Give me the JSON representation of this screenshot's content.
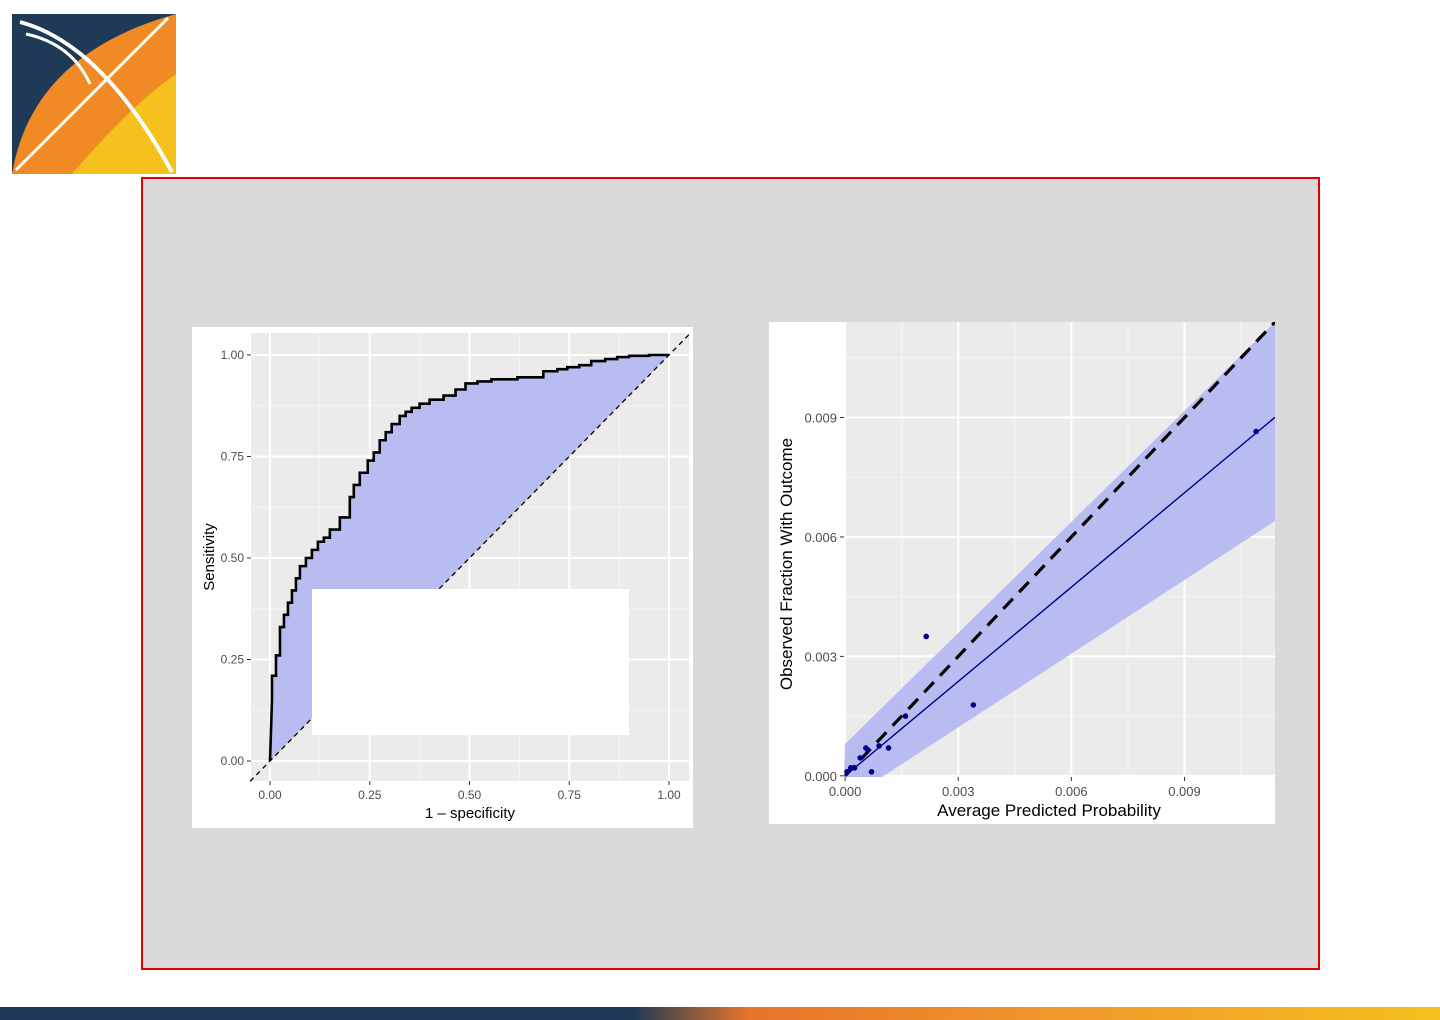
{
  "colors": {
    "frame_border": "#e00000",
    "panel_background": "#d9d9d9",
    "plot_background": "#ebebeb",
    "ribbon_fill": "#b9bcf1",
    "roc_curve": "#000000",
    "calibration_points": "#00008b",
    "calibration_fit_line": "#00008b",
    "logo_navy": "#1f3a56",
    "logo_orange": "#f08a24",
    "logo_yellow": "#f5c11c"
  },
  "logo": {
    "icon": "ohdsi-x-logo"
  },
  "chart_data": [
    {
      "type": "line",
      "xlabel": "1 – specificity",
      "ylabel": "Sensitivity",
      "xlim": [
        0,
        1
      ],
      "ylim": [
        0,
        1
      ],
      "x_tick_labels": [
        "0.00",
        "0.25",
        "0.50",
        "0.75",
        "1.00"
      ],
      "y_tick_labels": [
        "0.00",
        "0.25",
        "0.50",
        "0.75",
        "1.00"
      ],
      "grid": true,
      "diagonal_reference": "dashed",
      "shaded_area": "between curve and diagonal",
      "series": [
        {
          "x": [
            0,
            0.005,
            0.005,
            0.015,
            0.015,
            0.025,
            0.025,
            0.035,
            0.035,
            0.045,
            0.045,
            0.055,
            0.055,
            0.065,
            0.065,
            0.075,
            0.075,
            0.09,
            0.09,
            0.105,
            0.105,
            0.12,
            0.12,
            0.135,
            0.135,
            0.15,
            0.15,
            0.175,
            0.175,
            0.2,
            0.2,
            0.21,
            0.21,
            0.225,
            0.225,
            0.245,
            0.245,
            0.26,
            0.26,
            0.275,
            0.275,
            0.29,
            0.29,
            0.305,
            0.305,
            0.325,
            0.325,
            0.34,
            0.34,
            0.355,
            0.355,
            0.375,
            0.375,
            0.4,
            0.4,
            0.435,
            0.435,
            0.465,
            0.465,
            0.49,
            0.49,
            0.52,
            0.52,
            0.555,
            0.555,
            0.62,
            0.62,
            0.685,
            0.685,
            0.72,
            0.72,
            0.745,
            0.745,
            0.775,
            0.775,
            0.805,
            0.805,
            0.84,
            0.84,
            0.87,
            0.87,
            0.9,
            0.9,
            0.95,
            0.95,
            0.98,
            0.98,
            1.0
          ],
          "y": [
            0,
            0.15,
            0.21,
            0.21,
            0.26,
            0.26,
            0.33,
            0.33,
            0.36,
            0.36,
            0.39,
            0.39,
            0.42,
            0.42,
            0.45,
            0.45,
            0.48,
            0.48,
            0.5,
            0.5,
            0.52,
            0.52,
            0.54,
            0.54,
            0.55,
            0.55,
            0.57,
            0.57,
            0.6,
            0.6,
            0.65,
            0.65,
            0.68,
            0.68,
            0.71,
            0.71,
            0.74,
            0.74,
            0.76,
            0.76,
            0.79,
            0.79,
            0.81,
            0.81,
            0.83,
            0.83,
            0.85,
            0.85,
            0.86,
            0.86,
            0.87,
            0.87,
            0.88,
            0.88,
            0.89,
            0.89,
            0.9,
            0.9,
            0.915,
            0.915,
            0.93,
            0.93,
            0.935,
            0.935,
            0.94,
            0.94,
            0.945,
            0.945,
            0.96,
            0.96,
            0.965,
            0.965,
            0.97,
            0.97,
            0.975,
            0.975,
            0.985,
            0.985,
            0.99,
            0.99,
            0.995,
            0.995,
            0.998,
            0.998,
            1.0,
            1.0,
            1.0,
            1.0
          ]
        }
      ]
    },
    {
      "type": "scatter",
      "xlabel": "Average Predicted Probability",
      "ylabel": "Observed Fraction With Outcome",
      "xlim": [
        -3e-05,
        0.0114
      ],
      "ylim": [
        -3e-05,
        0.0114
      ],
      "x_tick_labels": [
        "0.000",
        "0.003",
        "0.006",
        "0.009"
      ],
      "y_tick_labels": [
        "0.000",
        "0.003",
        "0.006",
        "0.009"
      ],
      "grid": true,
      "diagonal_reference": "dashed",
      "fit_line": {
        "intercept": 0.0,
        "slope": 0.79
      },
      "confidence_band": {
        "x": [
          0.0,
          0.0114
        ],
        "lower": [
          -0.0006,
          0.0064
        ],
        "upper": [
          0.0008,
          0.0115
        ]
      },
      "series": [
        {
          "x": [
            5e-05,
            0.00015,
            0.00025,
            0.0004,
            0.00055,
            0.0006,
            0.0007,
            0.0009,
            0.00115,
            0.0016,
            0.00215,
            0.0034,
            0.0109
          ],
          "y": [
            0.0001,
            0.0002,
            0.0002,
            0.00045,
            0.0007,
            0.00065,
            0.0001,
            0.00075,
            0.0007,
            0.0015,
            0.0035,
            0.00178,
            0.00865
          ]
        }
      ]
    }
  ]
}
